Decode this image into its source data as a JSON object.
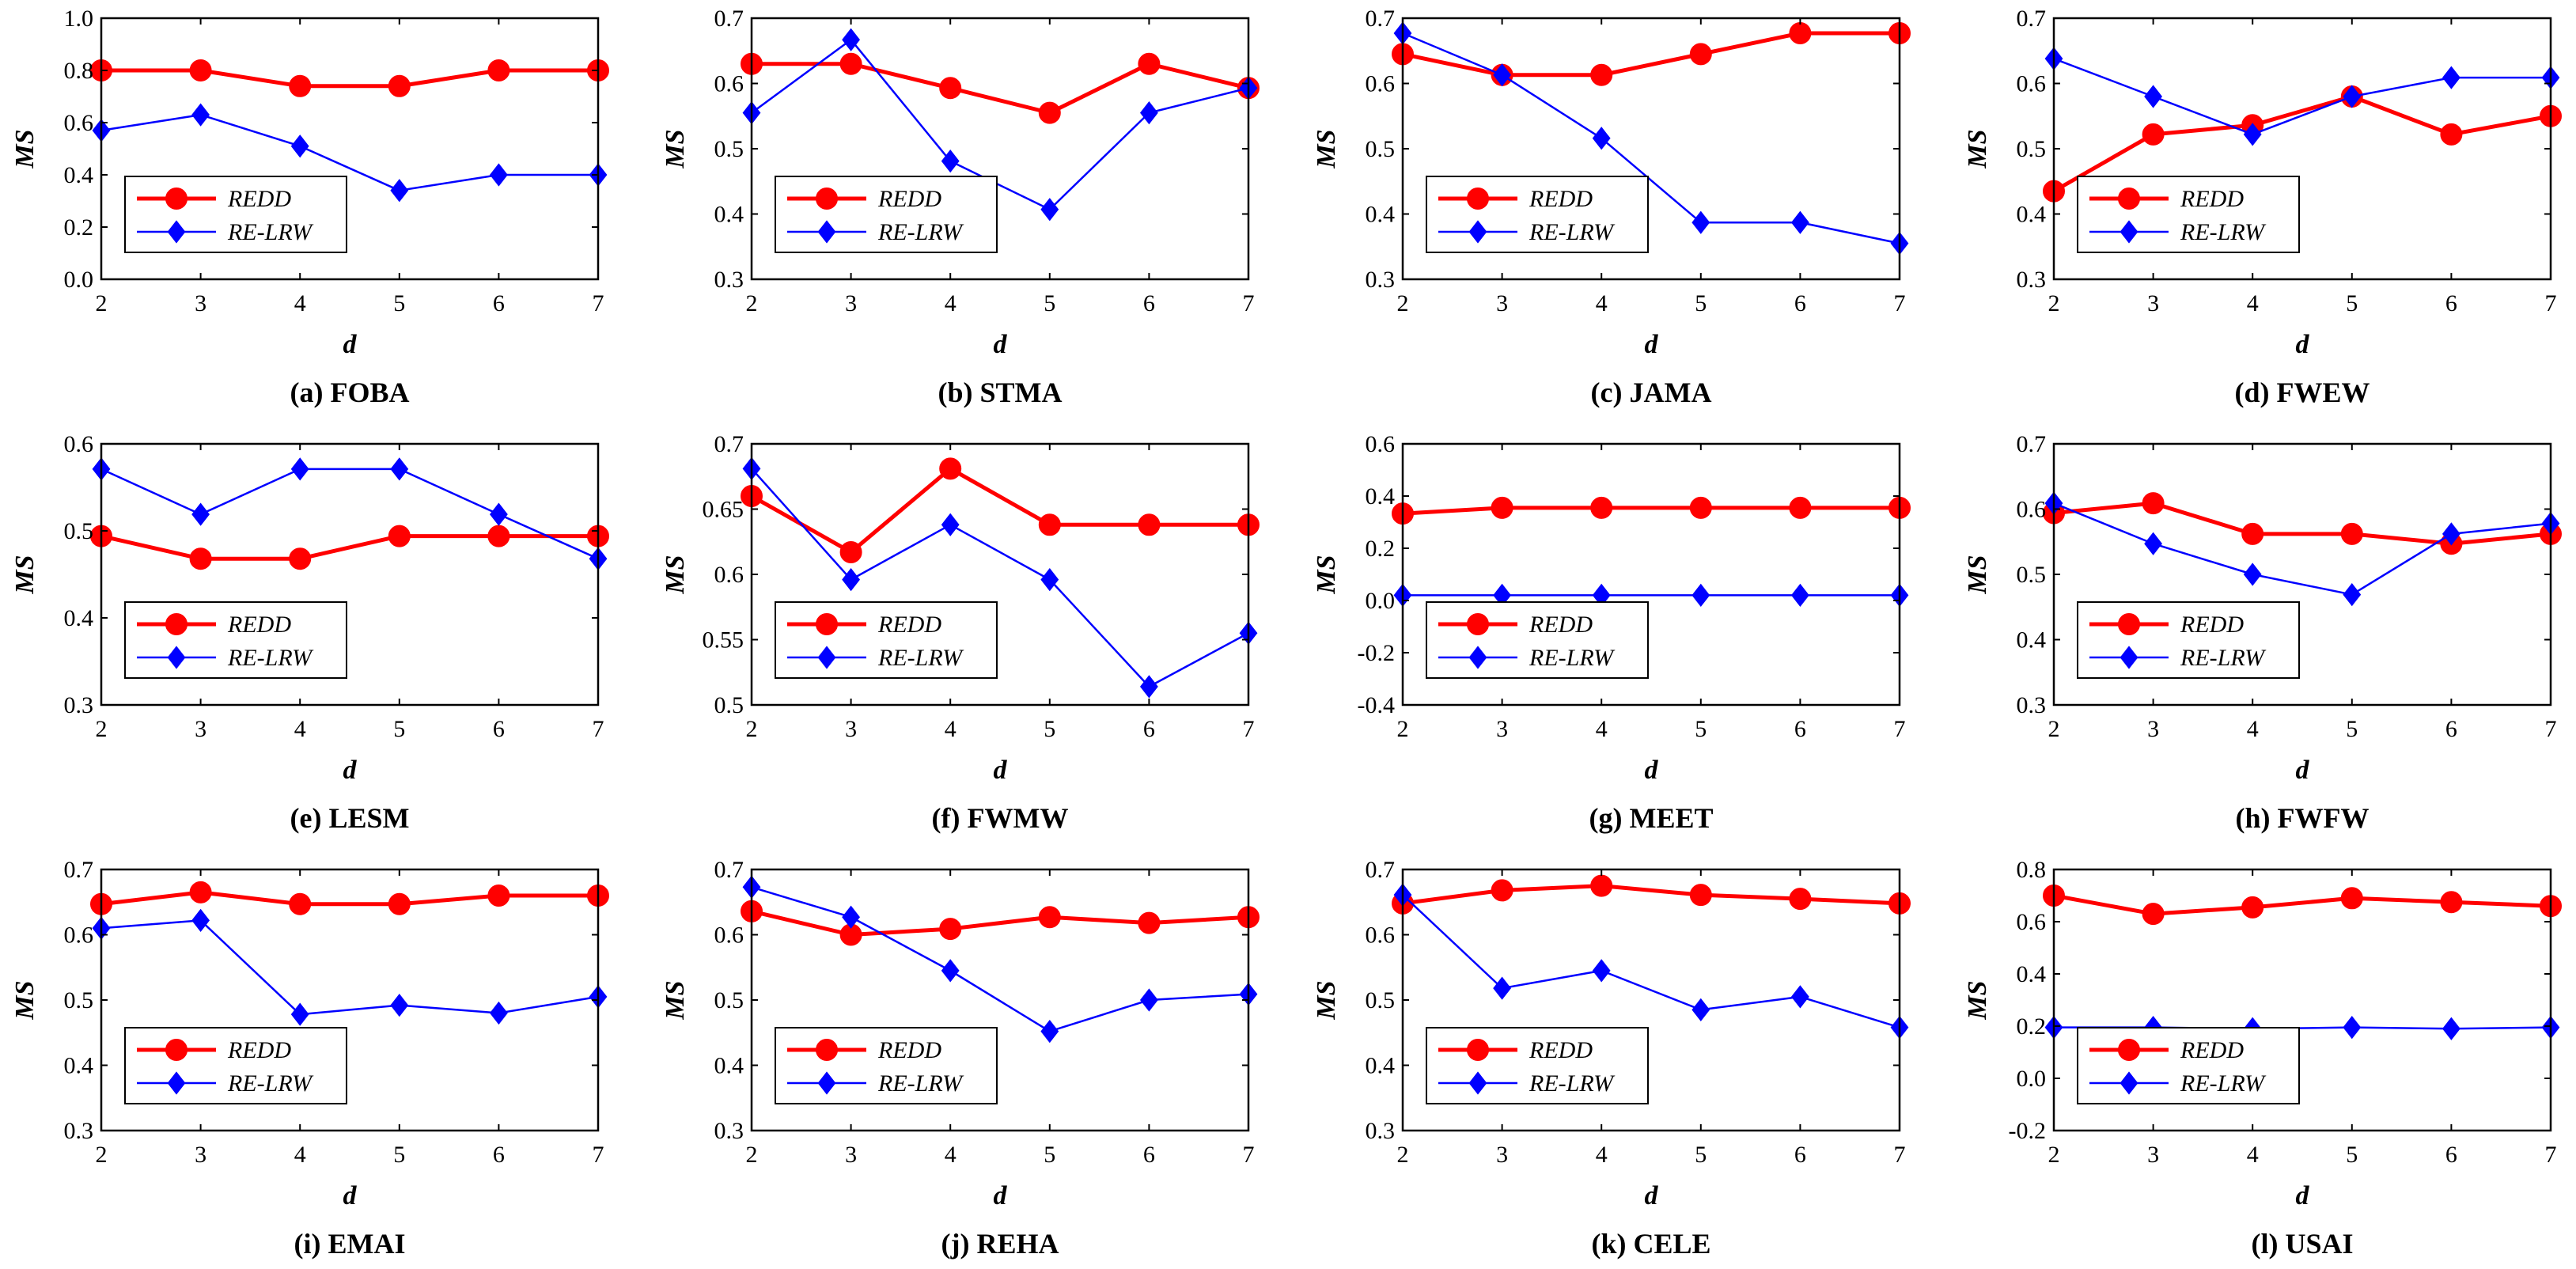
{
  "colors": {
    "redd": "#ff0000",
    "relrw": "#0000ff",
    "axis": "#000000"
  },
  "legend_labels": [
    "REDD",
    "RE-LRW"
  ],
  "legend_icons": [
    "filled-circle-marker",
    "filled-diamond-marker"
  ],
  "chart_data": [
    {
      "type": "line",
      "title": "(a) FOBA",
      "xlabel": "d",
      "ylabel": "MS",
      "x": [
        2,
        3,
        4,
        5,
        6,
        7
      ],
      "xlim": [
        2,
        7
      ],
      "ylim": [
        0,
        1.0
      ],
      "yticks": [
        "0.0",
        "0.2",
        "0.4",
        "0.6",
        "0.8",
        "1.0"
      ],
      "series": [
        {
          "name": "REDD",
          "values": [
            0.8,
            0.8,
            0.74,
            0.74,
            0.8,
            0.8
          ]
        },
        {
          "name": "RE-LRW",
          "values": [
            0.57,
            0.63,
            0.51,
            0.34,
            0.4,
            0.4
          ]
        }
      ]
    },
    {
      "type": "line",
      "title": "(b) STMA",
      "xlabel": "d",
      "ylabel": "MS",
      "x": [
        2,
        3,
        4,
        5,
        6,
        7
      ],
      "xlim": [
        2,
        7
      ],
      "ylim": [
        0.3,
        0.7
      ],
      "yticks": [
        "0.3",
        "0.4",
        "0.5",
        "0.6",
        "0.7"
      ],
      "series": [
        {
          "name": "REDD",
          "values": [
            0.63,
            0.63,
            0.593,
            0.555,
            0.63,
            0.593
          ]
        },
        {
          "name": "RE-LRW",
          "values": [
            0.555,
            0.667,
            0.481,
            0.407,
            0.555,
            0.593
          ]
        }
      ]
    },
    {
      "type": "line",
      "title": "(c) JAMA",
      "xlabel": "d",
      "ylabel": "MS",
      "x": [
        2,
        3,
        4,
        5,
        6,
        7
      ],
      "xlim": [
        2,
        7
      ],
      "ylim": [
        0.3,
        0.7
      ],
      "yticks": [
        "0.3",
        "0.4",
        "0.5",
        "0.6",
        "0.7"
      ],
      "series": [
        {
          "name": "REDD",
          "values": [
            0.645,
            0.613,
            0.613,
            0.645,
            0.677,
            0.677
          ]
        },
        {
          "name": "RE-LRW",
          "values": [
            0.677,
            0.613,
            0.516,
            0.387,
            0.387,
            0.355
          ]
        }
      ]
    },
    {
      "type": "line",
      "title": "(d) FWEW",
      "xlabel": "d",
      "ylabel": "MS",
      "x": [
        2,
        3,
        4,
        5,
        6,
        7
      ],
      "xlim": [
        2,
        7
      ],
      "ylim": [
        0.3,
        0.7
      ],
      "yticks": [
        "0.3",
        "0.4",
        "0.5",
        "0.6",
        "0.7"
      ],
      "series": [
        {
          "name": "REDD",
          "values": [
            0.435,
            0.522,
            0.536,
            0.58,
            0.522,
            0.55
          ]
        },
        {
          "name": "RE-LRW",
          "values": [
            0.638,
            0.58,
            0.522,
            0.58,
            0.609,
            0.609
          ]
        }
      ]
    },
    {
      "type": "line",
      "title": "(e) LESM",
      "xlabel": "d",
      "ylabel": "MS",
      "x": [
        2,
        3,
        4,
        5,
        6,
        7
      ],
      "xlim": [
        2,
        7
      ],
      "ylim": [
        0.3,
        0.6
      ],
      "yticks": [
        "0.3",
        "0.4",
        "0.5",
        "0.6"
      ],
      "series": [
        {
          "name": "REDD",
          "values": [
            0.494,
            0.468,
            0.468,
            0.494,
            0.494,
            0.494
          ]
        },
        {
          "name": "RE-LRW",
          "values": [
            0.571,
            0.519,
            0.571,
            0.571,
            0.519,
            0.468
          ]
        }
      ]
    },
    {
      "type": "line",
      "title": "(f) FWMW",
      "xlabel": "d",
      "ylabel": "MS",
      "x": [
        2,
        3,
        4,
        5,
        6,
        7
      ],
      "xlim": [
        2,
        7
      ],
      "ylim": [
        0.5,
        0.7
      ],
      "yticks": [
        "0.5",
        "0.55",
        "0.6",
        "0.65",
        "0.7"
      ],
      "series": [
        {
          "name": "REDD",
          "values": [
            0.66,
            0.617,
            0.681,
            0.638,
            0.638,
            0.638
          ]
        },
        {
          "name": "RE-LRW",
          "values": [
            0.681,
            0.596,
            0.638,
            0.596,
            0.514,
            0.555
          ]
        }
      ]
    },
    {
      "type": "line",
      "title": "(g) MEET",
      "xlabel": "d",
      "ylabel": "MS",
      "x": [
        2,
        3,
        4,
        5,
        6,
        7
      ],
      "xlim": [
        2,
        7
      ],
      "ylim": [
        -0.4,
        0.6
      ],
      "yticks": [
        "-0.4",
        "-0.2",
        "0.0",
        "0.2",
        "0.4",
        "0.6"
      ],
      "series": [
        {
          "name": "REDD",
          "values": [
            0.333,
            0.355,
            0.355,
            0.355,
            0.355,
            0.355
          ]
        },
        {
          "name": "RE-LRW",
          "values": [
            0.02,
            0.02,
            0.02,
            0.02,
            0.02,
            0.02
          ]
        }
      ]
    },
    {
      "type": "line",
      "title": "(h) FWFW",
      "xlabel": "d",
      "ylabel": "MS",
      "x": [
        2,
        3,
        4,
        5,
        6,
        7
      ],
      "xlim": [
        2,
        7
      ],
      "ylim": [
        0.3,
        0.7
      ],
      "yticks": [
        "0.3",
        "0.4",
        "0.5",
        "0.6",
        "0.7"
      ],
      "series": [
        {
          "name": "REDD",
          "values": [
            0.594,
            0.609,
            0.562,
            0.562,
            0.547,
            0.562
          ]
        },
        {
          "name": "RE-LRW",
          "values": [
            0.609,
            0.547,
            0.5,
            0.469,
            0.562,
            0.578
          ]
        }
      ]
    },
    {
      "type": "line",
      "title": "(i) EMAI",
      "xlabel": "d",
      "ylabel": "MS",
      "x": [
        2,
        3,
        4,
        5,
        6,
        7
      ],
      "xlim": [
        2,
        7
      ],
      "ylim": [
        0.3,
        0.7
      ],
      "yticks": [
        "0.3",
        "0.4",
        "0.5",
        "0.6",
        "0.7"
      ],
      "series": [
        {
          "name": "REDD",
          "values": [
            0.647,
            0.665,
            0.647,
            0.647,
            0.66,
            0.66
          ]
        },
        {
          "name": "RE-LRW",
          "values": [
            0.61,
            0.622,
            0.478,
            0.492,
            0.48,
            0.505
          ]
        }
      ]
    },
    {
      "type": "line",
      "title": "(j) REHA",
      "xlabel": "d",
      "ylabel": "MS",
      "x": [
        2,
        3,
        4,
        5,
        6,
        7
      ],
      "xlim": [
        2,
        7
      ],
      "ylim": [
        0.3,
        0.7
      ],
      "yticks": [
        "0.3",
        "0.4",
        "0.5",
        "0.6",
        "0.7"
      ],
      "series": [
        {
          "name": "REDD",
          "values": [
            0.636,
            0.6,
            0.609,
            0.627,
            0.618,
            0.627
          ]
        },
        {
          "name": "RE-LRW",
          "values": [
            0.673,
            0.627,
            0.545,
            0.452,
            0.5,
            0.509
          ]
        }
      ]
    },
    {
      "type": "line",
      "title": "(k) CELE",
      "xlabel": "d",
      "ylabel": "MS",
      "x": [
        2,
        3,
        4,
        5,
        6,
        7
      ],
      "xlim": [
        2,
        7
      ],
      "ylim": [
        0.3,
        0.7
      ],
      "yticks": [
        "0.3",
        "0.4",
        "0.5",
        "0.6",
        "0.7"
      ],
      "series": [
        {
          "name": "REDD",
          "values": [
            0.648,
            0.668,
            0.675,
            0.661,
            0.655,
            0.648
          ]
        },
        {
          "name": "RE-LRW",
          "values": [
            0.661,
            0.518,
            0.545,
            0.485,
            0.505,
            0.458
          ]
        }
      ]
    },
    {
      "type": "line",
      "title": "(l) USAI",
      "xlabel": "d",
      "ylabel": "MS",
      "x": [
        2,
        3,
        4,
        5,
        6,
        7
      ],
      "xlim": [
        2,
        7
      ],
      "ylim": [
        -0.2,
        0.8
      ],
      "yticks": [
        "-0.2",
        "0.0",
        "0.2",
        "0.4",
        "0.6",
        "0.8"
      ],
      "series": [
        {
          "name": "REDD",
          "values": [
            0.7,
            0.63,
            0.655,
            0.69,
            0.675,
            0.66
          ]
        },
        {
          "name": "RE-LRW",
          "values": [
            0.195,
            0.195,
            0.19,
            0.195,
            0.19,
            0.195
          ]
        }
      ]
    }
  ]
}
